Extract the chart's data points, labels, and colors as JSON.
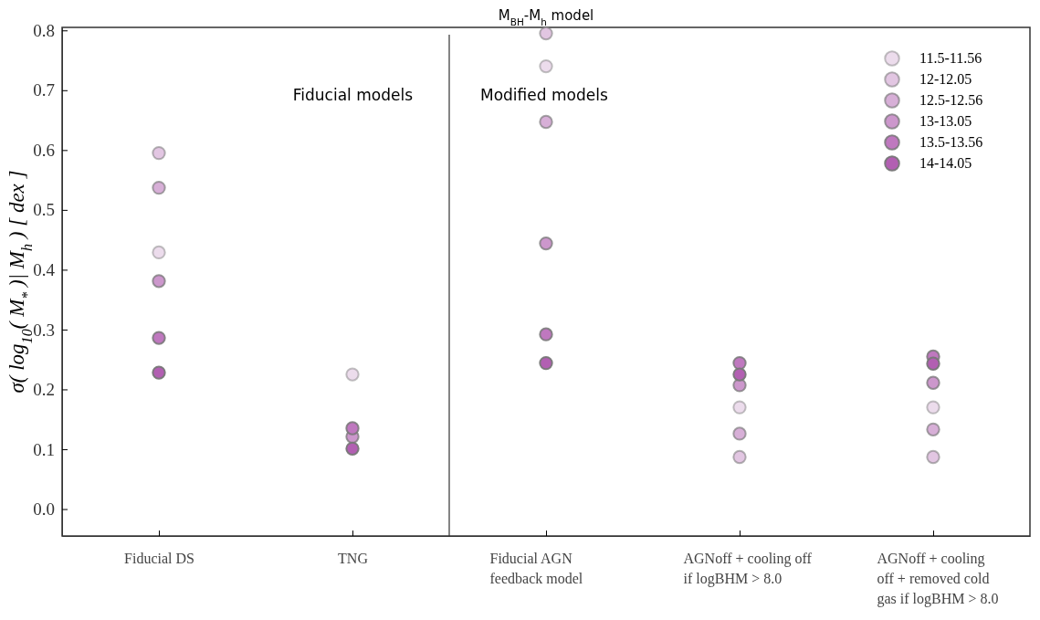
{
  "chart_data": {
    "type": "scatter",
    "title": "M$_{BH}$-M$_{h}$ model",
    "ylabel": "σ( log$_{10}$( M$_{*}$ )| M$_{h}$ ) [ dex ]",
    "categories": [
      "Fiducial DS",
      "TNG",
      "Fiducial AGN\nfeedback model",
      "AGNoff + cooling off\nif logBHM > 8.0",
      "AGNoff + cooling\noff + removed cold\ngas if logBHM > 8.0"
    ],
    "series": [
      {
        "name": "11.5-11.56",
        "color": "#ecdcec",
        "values": [
          0.429,
          0.225,
          0.74,
          0.17,
          0.17
        ]
      },
      {
        "name": "12-12.05",
        "color": "#e2c6e2",
        "values": [
          0.595,
          null,
          0.795,
          0.087,
          0.087
        ]
      },
      {
        "name": "12.5-12.56",
        "color": "#d7afd7",
        "values": [
          0.537,
          null,
          0.647,
          0.126,
          0.133
        ]
      },
      {
        "name": "13-13.05",
        "color": "#cc97cc",
        "values": [
          0.381,
          0.121,
          0.444,
          0.207,
          0.211
        ]
      },
      {
        "name": "13.5-13.56",
        "color": "#bf78bf",
        "values": [
          0.286,
          0.135,
          0.292,
          0.244,
          0.255
        ]
      },
      {
        "name": "14-14.05",
        "color": "#b25fb2",
        "values": [
          0.228,
          0.101,
          0.244,
          0.225,
          0.243
        ]
      }
    ],
    "ylim": [
      -0.045,
      0.805
    ],
    "yticks": [
      {
        "value": 0,
        "label": "0.0"
      },
      {
        "value": 0.1,
        "label": "0.1"
      },
      {
        "value": 0.2,
        "label": "0.2"
      },
      {
        "value": 0.3,
        "label": "0.3"
      },
      {
        "value": 0.4,
        "label": "0.4"
      },
      {
        "value": 0.5,
        "label": "0.5"
      },
      {
        "value": 0.6,
        "label": "0.6"
      },
      {
        "value": 0.7,
        "label": "0.7"
      },
      {
        "value": 0.8,
        "label": "0.8"
      }
    ],
    "annotations": [
      "Fiducial models",
      "Modified models"
    ],
    "marker": "circle",
    "legend": "top right",
    "grid": false
  }
}
